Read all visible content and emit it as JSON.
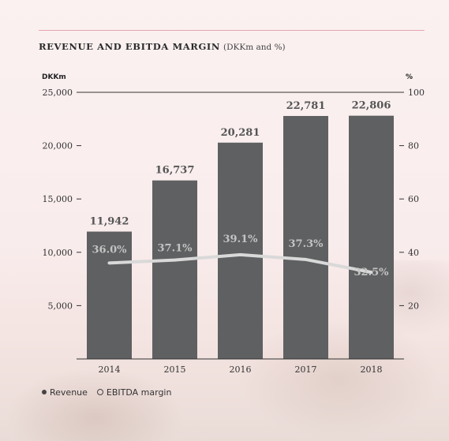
{
  "header": {
    "title": "REVENUE AND EBITDA MARGIN",
    "subtitle": "(DKKm and %)"
  },
  "legend": {
    "revenue": "Revenue",
    "ebitda": "EBITDA margin"
  },
  "colors": {
    "bar": "#5f6062",
    "line": "#d9d9d9",
    "axis": "#333333"
  },
  "chart_data": {
    "type": "bar",
    "categories": [
      "2014",
      "2015",
      "2016",
      "2017",
      "2018"
    ],
    "series": [
      {
        "name": "Revenue",
        "type": "bar",
        "axis": "left",
        "values": [
          11942,
          16737,
          20281,
          22781,
          22806
        ],
        "labels": [
          "11,942",
          "16,737",
          "20,281",
          "22,781",
          "22,806"
        ]
      },
      {
        "name": "EBITDA margin",
        "type": "line",
        "axis": "right",
        "values": [
          36.0,
          37.1,
          39.1,
          37.3,
          32.5
        ],
        "labels": [
          "36.0%",
          "37.1%",
          "39.1%",
          "37.3%",
          "32.5%"
        ]
      }
    ],
    "y_left": {
      "label": "DKKm",
      "min": 0,
      "max": 25000,
      "ticks": [
        5000,
        10000,
        15000,
        20000,
        25000
      ],
      "tick_labels": [
        "5,000",
        "10,000",
        "15,000",
        "20,000",
        "25,000"
      ]
    },
    "y_right": {
      "label": "%",
      "min": 0,
      "max": 100,
      "ticks": [
        20,
        40,
        60,
        80,
        100
      ],
      "tick_labels": [
        "20",
        "40",
        "60",
        "80",
        "100"
      ]
    },
    "grid": false,
    "legend_position": "bottom-left"
  }
}
